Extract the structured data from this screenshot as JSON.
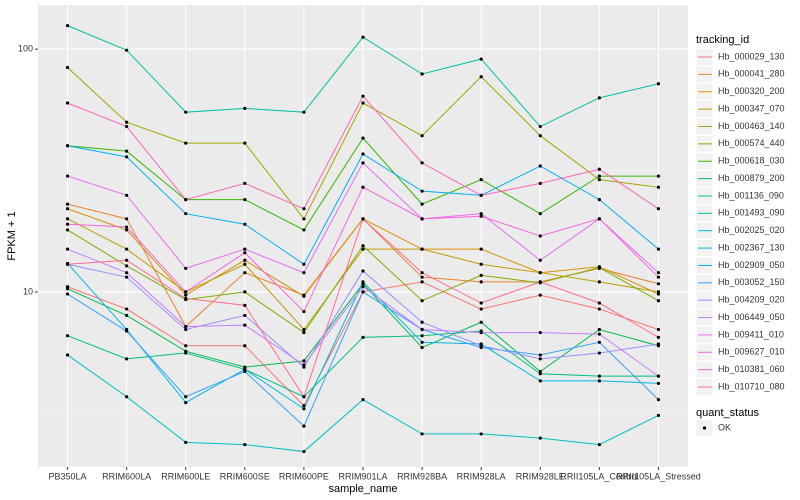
{
  "chart_data": {
    "type": "line",
    "x_label": "sample_name",
    "y_label": "FPKM + 1",
    "legend_title": "tracking_id",
    "point_legend": {
      "title": "quant_status",
      "labels": [
        "OK"
      ],
      "color": "#000000"
    },
    "yscale": "log",
    "grid": true,
    "ylim": [
      1.9,
      152
    ],
    "yticks": [
      10,
      100
    ],
    "categories": [
      "PB350LA",
      "RRIM600LA",
      "RRIM600LE",
      "RRIM600SE",
      "RRIM600PE",
      "RRIM901LA",
      "RRIM928BA",
      "RRIM928LA",
      "RRIM928LE",
      "RRII105LA_Control",
      "RRII105LA_Stressed"
    ],
    "series": [
      {
        "name": "Hb_000029_130",
        "color": "#F8766D",
        "values": [
          10.5,
          8.5,
          6,
          6,
          3.4,
          10,
          11,
          8.5,
          9.7,
          8.5,
          7
        ]
      },
      {
        "name": "Hb_000041_280",
        "color": "#EA8331",
        "values": [
          23,
          20,
          7.2,
          12,
          9.7,
          20,
          11.5,
          11,
          11,
          12.5,
          10.8
        ]
      },
      {
        "name": "Hb_000320_200",
        "color": "#D89000",
        "values": [
          22,
          18,
          9.7,
          13.5,
          9.6,
          20,
          15,
          15,
          12,
          12.7,
          9.8
        ]
      },
      {
        "name": "Hb_000347_070",
        "color": "#C09B00",
        "values": [
          20,
          15,
          10,
          13,
          7,
          15,
          15,
          13,
          12,
          11,
          10
        ]
      },
      {
        "name": "Hb_000463_140",
        "color": "#A3A500",
        "values": [
          84,
          50,
          41,
          41,
          20,
          60,
          44,
          77,
          44,
          29,
          27
        ]
      },
      {
        "name": "Hb_000574_440",
        "color": "#7CAE00",
        "values": [
          18,
          12.8,
          9.3,
          10,
          6.8,
          15.5,
          9.2,
          11.7,
          10.9,
          12.6,
          9.2
        ]
      },
      {
        "name": "Hb_000618_030",
        "color": "#39B600",
        "values": [
          40,
          38,
          24,
          24,
          18,
          43,
          23,
          29,
          21,
          30,
          30
        ]
      },
      {
        "name": "Hb_000879_200",
        "color": "#00BB4E",
        "values": [
          10.3,
          8,
          5.7,
          4.9,
          5.2,
          10.8,
          5.9,
          7.5,
          4.7,
          7,
          6
        ]
      },
      {
        "name": "Hb_001136_090",
        "color": "#00BF7D",
        "values": [
          6.6,
          5.3,
          5.6,
          4.8,
          3.7,
          6.5,
          6.6,
          6.9,
          4.6,
          4.5,
          4.5
        ]
      },
      {
        "name": "Hb_001493_090",
        "color": "#00C1A3",
        "values": [
          125,
          99,
          55,
          57,
          55,
          112,
          79,
          91,
          48,
          63,
          72
        ]
      },
      {
        "name": "Hb_002025_020",
        "color": "#00BFC4",
        "values": [
          5.5,
          3.7,
          2.4,
          2.35,
          2.2,
          3.6,
          2.6,
          2.6,
          2.5,
          2.35,
          3.1
        ]
      },
      {
        "name": "Hb_002367_130",
        "color": "#00BAE0",
        "values": [
          13.1,
          7,
          3.5,
          4.8,
          3.3,
          11,
          6.2,
          6.1,
          4.3,
          4.3,
          4.2
        ]
      },
      {
        "name": "Hb_002909_050",
        "color": "#00B0F6",
        "values": [
          40,
          36,
          21,
          19,
          13,
          37,
          26,
          25,
          33,
          24,
          15
        ]
      },
      {
        "name": "Hb_003052_150",
        "color": "#35A2FF",
        "values": [
          9.8,
          6.9,
          3.7,
          4.7,
          2.8,
          10,
          7,
          5.9,
          5.5,
          6.2,
          3.6
        ]
      },
      {
        "name": "Hb_004209_020",
        "color": "#9590FF",
        "values": [
          13,
          11.5,
          7,
          8,
          4.9,
          12.2,
          7.5,
          6,
          5.3,
          5.6,
          6.1
        ]
      },
      {
        "name": "Hb_006449_050",
        "color": "#C77CFF",
        "values": [
          15,
          12,
          7.2,
          7.3,
          5,
          10.5,
          7,
          6.8,
          6.8,
          6.7,
          4.5
        ]
      },
      {
        "name": "Hb_009411_010",
        "color": "#E76BF3",
        "values": [
          30,
          25,
          12.5,
          15,
          12,
          34,
          20,
          21,
          13.5,
          20,
          12
        ]
      },
      {
        "name": "Hb_009627_010",
        "color": "#FA62DB",
        "values": [
          19,
          18.5,
          10,
          14.5,
          8.3,
          27,
          20,
          20.5,
          17,
          20,
          11.5
        ]
      },
      {
        "name": "Hb_010381_060",
        "color": "#FF62BC",
        "values": [
          60,
          48,
          24,
          28,
          22,
          64,
          34,
          25,
          28,
          32,
          22
        ]
      },
      {
        "name": "Hb_010710_080",
        "color": "#FF6C91",
        "values": [
          13,
          13.5,
          9.4,
          8.8,
          3.7,
          20,
          12,
          9,
          11,
          9,
          6.5
        ]
      }
    ]
  }
}
